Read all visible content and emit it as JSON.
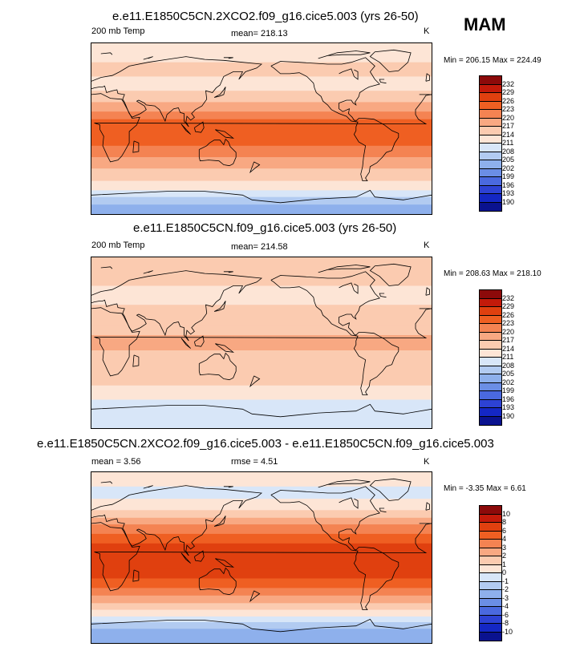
{
  "season": "MAM",
  "panels": [
    {
      "title": "e.e11.E1850C5CN.2XCO2.f09_g16.cice5.003 (yrs 26-50)",
      "left_label": "200 mb Temp",
      "center_label": "mean= 218.13",
      "right_label": "K",
      "minmax": "Min = 206.15 Max = 224.49",
      "colorbar_labels": [
        "232",
        "229",
        "226",
        "223",
        "220",
        "217",
        "214",
        "211",
        "208",
        "205",
        "202",
        "199",
        "196",
        "193",
        "190"
      ],
      "colors": [
        "#8c0a0a",
        "#c31a0a",
        "#e0400f",
        "#ef5f22",
        "#f48352",
        "#f8a882",
        "#fbcbb0",
        "#fde5d6",
        "#d8e6f8",
        "#b2cbf1",
        "#8eb0ec",
        "#6b8ee5",
        "#4a69df",
        "#2d42d4",
        "#1427c4",
        "#0a128f"
      ],
      "bands": [
        {
          "lat": 90,
          "k": 7
        },
        {
          "lat": 70,
          "k": 6
        },
        {
          "lat": 55,
          "k": 7
        },
        {
          "lat": 40,
          "k": 6
        },
        {
          "lat": 28,
          "k": 5
        },
        {
          "lat": 18,
          "k": 4
        },
        {
          "lat": 10,
          "k": 3
        },
        {
          "lat": -10,
          "k": 3
        },
        {
          "lat": -18,
          "k": 4
        },
        {
          "lat": -30,
          "k": 5
        },
        {
          "lat": -42,
          "k": 6
        },
        {
          "lat": -55,
          "k": 7
        },
        {
          "lat": -65,
          "k": 8
        },
        {
          "lat": -72,
          "k": 9
        },
        {
          "lat": -80,
          "k": 10
        }
      ]
    },
    {
      "title": "e.e11.E1850C5CN.f09_g16.cice5.003 (yrs 26-50)",
      "left_label": "200 mb Temp",
      "center_label": "mean= 214.58",
      "right_label": "K",
      "minmax": "Min = 208.63 Max = 218.10",
      "colorbar_labels": [
        "232",
        "229",
        "226",
        "223",
        "220",
        "217",
        "214",
        "211",
        "208",
        "205",
        "202",
        "199",
        "196",
        "193",
        "190"
      ],
      "colors": [
        "#8c0a0a",
        "#c31a0a",
        "#e0400f",
        "#ef5f22",
        "#f48352",
        "#f8a882",
        "#fbcbb0",
        "#fde5d6",
        "#d8e6f8",
        "#b2cbf1",
        "#8eb0ec",
        "#6b8ee5",
        "#4a69df",
        "#2d42d4",
        "#1427c4",
        "#0a128f"
      ],
      "bands": [
        {
          "lat": 90,
          "k": 6
        },
        {
          "lat": 60,
          "k": 7
        },
        {
          "lat": 40,
          "k": 6
        },
        {
          "lat": 30,
          "k": 6
        },
        {
          "lat": 18,
          "k": 6
        },
        {
          "lat": 8,
          "k": 5
        },
        {
          "lat": -8,
          "k": 6
        },
        {
          "lat": -25,
          "k": 6
        },
        {
          "lat": -45,
          "k": 7
        },
        {
          "lat": -60,
          "k": 8
        },
        {
          "lat": -75,
          "k": 8
        }
      ]
    },
    {
      "title": "e.e11.E1850C5CN.2XCO2.f09_g16.cice5.003 - e.e11.E1850C5CN.f09_g16.cice5.003",
      "left_label": "mean =   3.56",
      "center_label": "rmse =   4.51",
      "right_label": "K",
      "minmax": "Min =  -3.35 Max =   6.61",
      "colorbar_labels": [
        "10",
        "8",
        "6",
        "4",
        "3",
        "2",
        "1",
        "0",
        "-1",
        "-2",
        "-3",
        "-4",
        "-6",
        "-8",
        "-10"
      ],
      "colors": [
        "#8c0a0a",
        "#c31a0a",
        "#e0400f",
        "#ef5f22",
        "#f48352",
        "#f8a882",
        "#fbcbb0",
        "#fde5d6",
        "#d8e6f8",
        "#b2cbf1",
        "#8eb0ec",
        "#6b8ee5",
        "#4a69df",
        "#2d42d4",
        "#1427c4",
        "#0a128f"
      ],
      "bands": [
        {
          "lat": 90,
          "k": 7
        },
        {
          "lat": 75,
          "k": 8
        },
        {
          "lat": 62,
          "k": 7
        },
        {
          "lat": 50,
          "k": 6
        },
        {
          "lat": 42,
          "k": 5
        },
        {
          "lat": 35,
          "k": 4
        },
        {
          "lat": 25,
          "k": 3
        },
        {
          "lat": 15,
          "k": 2
        },
        {
          "lat": -12,
          "k": 2
        },
        {
          "lat": -22,
          "k": 3
        },
        {
          "lat": -32,
          "k": 4
        },
        {
          "lat": -40,
          "k": 5
        },
        {
          "lat": -48,
          "k": 6
        },
        {
          "lat": -55,
          "k": 7
        },
        {
          "lat": -62,
          "k": 8
        },
        {
          "lat": -68,
          "k": 9
        },
        {
          "lat": -75,
          "k": 10
        }
      ]
    }
  ]
}
